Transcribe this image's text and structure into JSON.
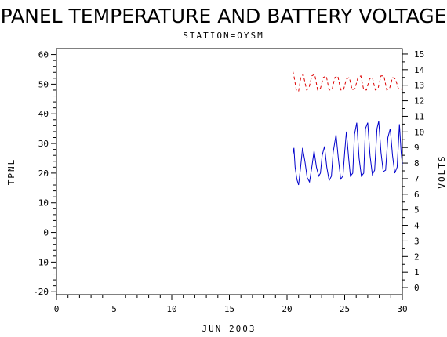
{
  "chart_data": {
    "type": "line",
    "title": "PANEL TEMPERATURE AND BATTERY VOLTAGE",
    "subtitle": "STATION=OYSM",
    "xlabel": "JUN 2003",
    "ylabel_left": "TPNL",
    "ylabel_right": "VOLTS",
    "xlim": [
      0,
      30
    ],
    "ylim_left": [
      -21,
      62
    ],
    "ylim_right": [
      -0.45,
      15.35
    ],
    "x_ticks": [
      "0",
      "5",
      "10",
      "15",
      "20",
      "25",
      "30"
    ],
    "y_ticks_left": [
      "-20",
      "-10",
      "0",
      "10",
      "20",
      "30",
      "40",
      "50",
      "60"
    ],
    "y_ticks_right": [
      "0",
      "1",
      "2",
      "3",
      "4",
      "5",
      "6",
      "7",
      "8",
      "9",
      "10",
      "11",
      "12",
      "13",
      "14",
      "15"
    ],
    "grid": false,
    "series": [
      {
        "axis": "left",
        "color": "#0000cc",
        "style": "solid",
        "x": [
          20.5,
          20.6,
          20.7,
          20.85,
          21.0,
          21.15,
          21.35,
          21.55,
          21.75,
          21.95,
          22.15,
          22.35,
          22.55,
          22.75,
          22.9,
          23.05,
          23.25,
          23.45,
          23.65,
          23.85,
          24.0,
          24.25,
          24.45,
          24.65,
          24.85,
          25.0,
          25.15,
          25.35,
          25.5,
          25.7,
          25.85,
          26.05,
          26.25,
          26.45,
          26.65,
          26.8,
          27.0,
          27.2,
          27.4,
          27.6,
          27.8,
          27.95,
          28.15,
          28.35,
          28.55,
          28.75,
          28.95,
          29.15,
          29.35,
          29.55,
          29.75,
          29.9,
          30.0
        ],
        "y": [
          26,
          28.5,
          22,
          18,
          16,
          21,
          28.5,
          24,
          18.5,
          17,
          22,
          27.5,
          22,
          19,
          20,
          26,
          29,
          22,
          17.5,
          19,
          27,
          33,
          25,
          18,
          19,
          27,
          34,
          25,
          19,
          20,
          33,
          37,
          25,
          19,
          20,
          35,
          37,
          26,
          19.5,
          21,
          35,
          37.5,
          27,
          20.5,
          21,
          32,
          35,
          26,
          20,
          22,
          36.5,
          27,
          23
        ]
      },
      {
        "axis": "right",
        "color": "#dd0000",
        "style": "dashed",
        "x": [
          20.5,
          20.6,
          20.8,
          21.0,
          21.2,
          21.4,
          21.7,
          21.9,
          22.15,
          22.4,
          22.65,
          22.9,
          23.15,
          23.4,
          23.65,
          23.9,
          24.15,
          24.4,
          24.65,
          24.9,
          25.15,
          25.4,
          25.65,
          25.9,
          26.15,
          26.4,
          26.65,
          26.9,
          27.15,
          27.4,
          27.65,
          27.9,
          28.15,
          28.4,
          28.65,
          28.9,
          29.15,
          29.4,
          29.65,
          29.8,
          30.0
        ],
        "y": [
          13.9,
          13.6,
          12.7,
          12.6,
          13.5,
          13.7,
          12.7,
          12.8,
          13.6,
          13.7,
          12.7,
          12.8,
          13.5,
          13.6,
          12.7,
          12.7,
          13.5,
          13.6,
          12.7,
          12.7,
          13.4,
          13.5,
          12.7,
          12.8,
          13.5,
          13.6,
          12.7,
          12.7,
          13.4,
          13.5,
          12.7,
          12.8,
          13.6,
          13.6,
          12.7,
          12.8,
          13.5,
          13.4,
          12.8,
          12.7,
          12.8
        ]
      }
    ]
  }
}
